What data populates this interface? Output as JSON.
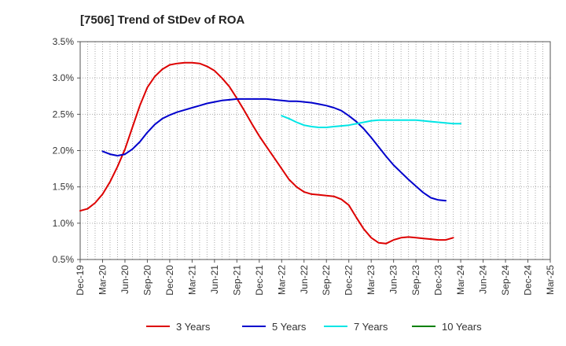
{
  "chart_data": {
    "type": "line",
    "title": "[7506]  Trend of StDev of ROA",
    "xlabel": "",
    "ylabel": "",
    "x_tick_labels": [
      "Dec-19",
      "Mar-20",
      "Jun-20",
      "Sep-20",
      "Dec-20",
      "Mar-21",
      "Jun-21",
      "Sep-21",
      "Dec-21",
      "Mar-22",
      "Jun-22",
      "Sep-22",
      "Dec-22",
      "Mar-23",
      "Jun-23",
      "Sep-23",
      "Dec-23",
      "Mar-24",
      "Jun-24",
      "Sep-24",
      "Dec-24",
      "Mar-25"
    ],
    "y_tick_labels": [
      "3.5%",
      "3.0%",
      "2.5%",
      "2.0%",
      "1.5%",
      "1.0%",
      "0.5%"
    ],
    "ylim": [
      0.5,
      3.5
    ],
    "y_unit": "%",
    "grid": true,
    "legend_position": "bottom",
    "series": [
      {
        "name": "3 Years",
        "color": "#dd0000",
        "points": [
          [
            "Dec-19",
            1.17
          ],
          [
            "Jan-20",
            1.2
          ],
          [
            "Feb-20",
            1.28
          ],
          [
            "Mar-20",
            1.4
          ],
          [
            "Apr-20",
            1.57
          ],
          [
            "May-20",
            1.78
          ],
          [
            "Jun-20",
            2.02
          ],
          [
            "Jul-20",
            2.32
          ],
          [
            "Aug-20",
            2.62
          ],
          [
            "Sep-20",
            2.87
          ],
          [
            "Oct-20",
            3.02
          ],
          [
            "Nov-20",
            3.12
          ],
          [
            "Dec-20",
            3.18
          ],
          [
            "Jan-21",
            3.2
          ],
          [
            "Feb-21",
            3.21
          ],
          [
            "Mar-21",
            3.21
          ],
          [
            "Apr-21",
            3.2
          ],
          [
            "May-21",
            3.16
          ],
          [
            "Jun-21",
            3.1
          ],
          [
            "Jul-21",
            3.0
          ],
          [
            "Aug-21",
            2.88
          ],
          [
            "Sep-21",
            2.72
          ],
          [
            "Oct-21",
            2.55
          ],
          [
            "Nov-21",
            2.37
          ],
          [
            "Dec-21",
            2.2
          ],
          [
            "Jan-22",
            2.05
          ],
          [
            "Feb-22",
            1.9
          ],
          [
            "Mar-22",
            1.75
          ],
          [
            "Apr-22",
            1.6
          ],
          [
            "May-22",
            1.5
          ],
          [
            "Jun-22",
            1.43
          ],
          [
            "Jul-22",
            1.4
          ],
          [
            "Aug-22",
            1.39
          ],
          [
            "Sep-22",
            1.38
          ],
          [
            "Oct-22",
            1.37
          ],
          [
            "Nov-22",
            1.33
          ],
          [
            "Dec-22",
            1.25
          ],
          [
            "Jan-23",
            1.08
          ],
          [
            "Feb-23",
            0.92
          ],
          [
            "Mar-23",
            0.8
          ],
          [
            "Apr-23",
            0.73
          ],
          [
            "May-23",
            0.72
          ],
          [
            "Jun-23",
            0.77
          ],
          [
            "Jul-23",
            0.8
          ],
          [
            "Aug-23",
            0.81
          ],
          [
            "Sep-23",
            0.8
          ],
          [
            "Oct-23",
            0.79
          ],
          [
            "Nov-23",
            0.78
          ],
          [
            "Dec-23",
            0.77
          ],
          [
            "Jan-24",
            0.77
          ],
          [
            "Feb-24",
            0.8
          ]
        ]
      },
      {
        "name": "5 Years",
        "color": "#0000cc",
        "points": [
          [
            "Mar-20",
            1.99
          ],
          [
            "Apr-20",
            1.95
          ],
          [
            "May-20",
            1.93
          ],
          [
            "Jun-20",
            1.95
          ],
          [
            "Jul-20",
            2.02
          ],
          [
            "Aug-20",
            2.12
          ],
          [
            "Sep-20",
            2.25
          ],
          [
            "Oct-20",
            2.36
          ],
          [
            "Nov-20",
            2.44
          ],
          [
            "Dec-20",
            2.49
          ],
          [
            "Jan-21",
            2.53
          ],
          [
            "Feb-21",
            2.56
          ],
          [
            "Mar-21",
            2.59
          ],
          [
            "Apr-21",
            2.62
          ],
          [
            "May-21",
            2.65
          ],
          [
            "Jun-21",
            2.67
          ],
          [
            "Jul-21",
            2.69
          ],
          [
            "Aug-21",
            2.7
          ],
          [
            "Sep-21",
            2.71
          ],
          [
            "Oct-21",
            2.71
          ],
          [
            "Nov-21",
            2.71
          ],
          [
            "Dec-21",
            2.71
          ],
          [
            "Jan-22",
            2.71
          ],
          [
            "Feb-22",
            2.7
          ],
          [
            "Mar-22",
            2.69
          ],
          [
            "Apr-22",
            2.68
          ],
          [
            "May-22",
            2.68
          ],
          [
            "Jun-22",
            2.67
          ],
          [
            "Jul-22",
            2.66
          ],
          [
            "Aug-22",
            2.64
          ],
          [
            "Sep-22",
            2.62
          ],
          [
            "Oct-22",
            2.59
          ],
          [
            "Nov-22",
            2.55
          ],
          [
            "Dec-22",
            2.48
          ],
          [
            "Jan-23",
            2.4
          ],
          [
            "Feb-23",
            2.3
          ],
          [
            "Mar-23",
            2.18
          ],
          [
            "Apr-23",
            2.05
          ],
          [
            "May-23",
            1.92
          ],
          [
            "Jun-23",
            1.8
          ],
          [
            "Jul-23",
            1.7
          ],
          [
            "Aug-23",
            1.6
          ],
          [
            "Sep-23",
            1.51
          ],
          [
            "Oct-23",
            1.42
          ],
          [
            "Nov-23",
            1.35
          ],
          [
            "Dec-23",
            1.32
          ],
          [
            "Jan-24",
            1.31
          ]
        ]
      },
      {
        "name": "7 Years",
        "color": "#00e5e5",
        "points": [
          [
            "Mar-22",
            2.48
          ],
          [
            "Apr-22",
            2.44
          ],
          [
            "May-22",
            2.39
          ],
          [
            "Jun-22",
            2.35
          ],
          [
            "Jul-22",
            2.33
          ],
          [
            "Aug-22",
            2.32
          ],
          [
            "Sep-22",
            2.32
          ],
          [
            "Oct-22",
            2.33
          ],
          [
            "Nov-22",
            2.34
          ],
          [
            "Dec-22",
            2.35
          ],
          [
            "Jan-23",
            2.37
          ],
          [
            "Feb-23",
            2.39
          ],
          [
            "Mar-23",
            2.41
          ],
          [
            "Apr-23",
            2.42
          ],
          [
            "May-23",
            2.42
          ],
          [
            "Jun-23",
            2.42
          ],
          [
            "Jul-23",
            2.42
          ],
          [
            "Aug-23",
            2.42
          ],
          [
            "Sep-23",
            2.42
          ],
          [
            "Oct-23",
            2.41
          ],
          [
            "Nov-23",
            2.4
          ],
          [
            "Dec-23",
            2.39
          ],
          [
            "Jan-24",
            2.38
          ],
          [
            "Feb-24",
            2.37
          ],
          [
            "Mar-24",
            2.37
          ]
        ]
      },
      {
        "name": "10 Years",
        "color": "#008000",
        "points": []
      }
    ]
  }
}
